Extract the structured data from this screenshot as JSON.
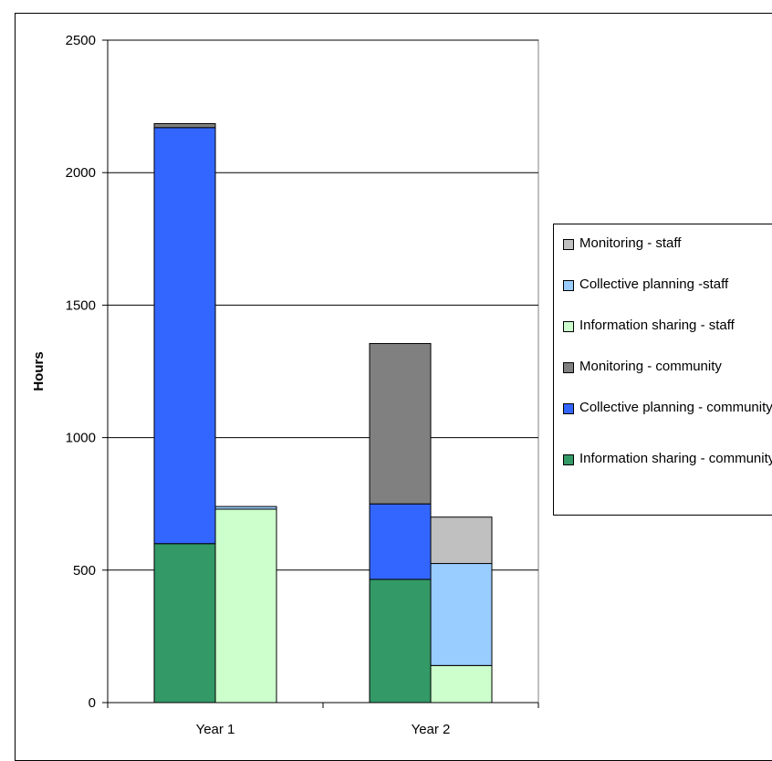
{
  "chart_data": {
    "type": "bar",
    "stacked": true,
    "ylabel": "Hours",
    "xlabel": "",
    "ylim": [
      0,
      2500
    ],
    "yticks": [
      0,
      500,
      1000,
      1500,
      2000,
      2500
    ],
    "grid": true,
    "legend_position": "right",
    "groups": [
      {
        "label": "Year 1",
        "bars": [
          {
            "stack": "community",
            "segments": [
              {
                "series": "Information sharing - community",
                "value": 600
              },
              {
                "series": "Collective planning - community",
                "value": 1570
              },
              {
                "series": "Monitoring - community",
                "value": 15
              }
            ]
          },
          {
            "stack": "staff",
            "segments": [
              {
                "series": "Information sharing - staff",
                "value": 730
              },
              {
                "series": "Collective planning -staff",
                "value": 10
              },
              {
                "series": "Monitoring - staff",
                "value": 0
              }
            ]
          }
        ]
      },
      {
        "label": "Year 2",
        "bars": [
          {
            "stack": "community",
            "segments": [
              {
                "series": "Information sharing - community",
                "value": 465
              },
              {
                "series": "Collective planning - community",
                "value": 285
              },
              {
                "series": "Monitoring - community",
                "value": 605
              }
            ]
          },
          {
            "stack": "staff",
            "segments": [
              {
                "series": "Information sharing - staff",
                "value": 140
              },
              {
                "series": "Collective planning -staff",
                "value": 385
              },
              {
                "series": "Monitoring - staff",
                "value": 175
              }
            ]
          }
        ]
      }
    ],
    "series": [
      {
        "name": "Monitoring - staff",
        "color": "#c0c0c0"
      },
      {
        "name": "Collective planning -staff",
        "color": "#99ccff"
      },
      {
        "name": "Information sharing - staff",
        "color": "#ccffcc"
      },
      {
        "name": "Monitoring - community",
        "color": "#808080"
      },
      {
        "name": "Collective planning - community",
        "color": "#3366ff"
      },
      {
        "name": "Information sharing - community",
        "color": "#339966"
      }
    ]
  },
  "legend": {
    "items": [
      {
        "label": "Monitoring - staff",
        "color": "#c0c0c0"
      },
      {
        "label": "Collective planning -staff",
        "color": "#99ccff"
      },
      {
        "label": "Information sharing - staff",
        "color": "#ccffcc"
      },
      {
        "label": "Monitoring - community",
        "color": "#808080"
      },
      {
        "label": "Collective planning - community",
        "color": "#3366ff"
      },
      {
        "label": "Information sharing - community",
        "color": "#339966"
      }
    ]
  }
}
